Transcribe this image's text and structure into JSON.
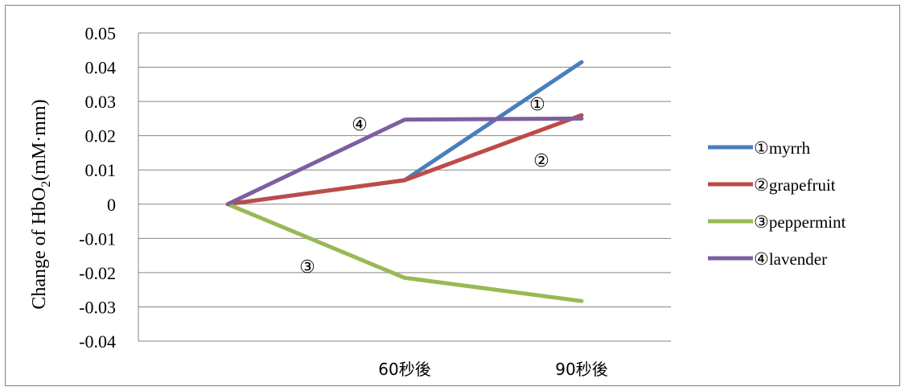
{
  "chart_data": {
    "type": "line",
    "title": "",
    "xlabel": "",
    "ylabel": "Change of  HbO",
    "ylabel_subscript": "2",
    "ylabel_suffix": "(mM·mm)",
    "categories": [
      "",
      "60秒後",
      "90秒後"
    ],
    "ylim": [
      -0.04,
      0.05
    ],
    "yticks": [
      "0.05",
      "0.04",
      "0.03",
      "0.02",
      "0.01",
      "0",
      "-0.01",
      "-0.02",
      "-0.03",
      "-0.04"
    ],
    "grid": true,
    "legend_position": "right",
    "series": [
      {
        "name": "①myrrh",
        "marker": "①",
        "color": "#4a7ebb",
        "values": [
          0,
          0.007,
          0.0415
        ]
      },
      {
        "name": "②grapefruit",
        "marker": "②",
        "color": "#be4b48",
        "values": [
          0,
          0.007,
          0.026
        ]
      },
      {
        "name": "③peppermint",
        "marker": "③",
        "color": "#98b954",
        "values": [
          0,
          -0.0215,
          -0.0283
        ]
      },
      {
        "name": "④lavender",
        "marker": "④",
        "color": "#7d5fa0",
        "values": [
          0,
          0.0247,
          0.025
        ]
      }
    ]
  }
}
